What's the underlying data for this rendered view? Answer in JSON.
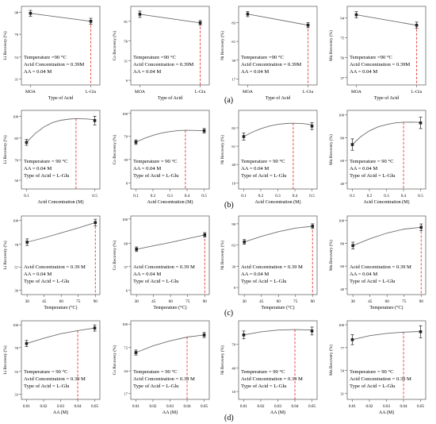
{
  "row_labels": [
    "(a)",
    "(b)",
    "(c)",
    "(d)"
  ],
  "colors": {
    "curve": "#6e6e6e",
    "marker": "#222222",
    "dashed": "#e8352c",
    "frame": "#555555"
  },
  "chart_data": [
    {
      "type": "line",
      "row": 0,
      "col": 0,
      "ylabel": "Li Recovery (%)",
      "xlabel": "Type of Acid",
      "x_categorical": true,
      "x_ticks": [
        "MOA",
        "L-Glu"
      ],
      "x": [
        0,
        1
      ],
      "xlim": [
        -0.15,
        1.15
      ],
      "y_ticks": [
        "31",
        "53",
        "76",
        "98"
      ],
      "ylim": [
        25,
        104
      ],
      "y_tick_vals": [
        31,
        53,
        76,
        98
      ],
      "points": [
        {
          "x": 0,
          "y": 97,
          "err": 3
        },
        {
          "x": 1,
          "y": 89,
          "err": 3
        }
      ],
      "curve": [
        [
          0,
          97
        ],
        [
          1,
          89
        ]
      ],
      "vline": 1,
      "annotation": [
        "Temperature =90 °C",
        "Acid Concentration = 0.39M",
        "AA = 0.04 M"
      ]
    },
    {
      "type": "line",
      "row": 0,
      "col": 1,
      "ylabel": "Co Recovery (%)",
      "xlabel": "Type of Acid",
      "x_categorical": true,
      "x_ticks": [
        "MOA",
        "L-Glu"
      ],
      "x": [
        0,
        1
      ],
      "xlim": [
        -0.15,
        1.15
      ],
      "y_ticks": [
        "6",
        "31",
        "56",
        "81"
      ],
      "ylim": [
        0,
        100
      ],
      "y_tick_vals": [
        6,
        31,
        56,
        81
      ],
      "points": [
        {
          "x": 0,
          "y": 90,
          "err": 4
        },
        {
          "x": 1,
          "y": 79,
          "err": 3
        }
      ],
      "curve": [
        [
          0,
          90
        ],
        [
          1,
          79
        ]
      ],
      "vline": 1,
      "annotation": [
        "Temperature =90 °C",
        "Acid Concentration = 0.39M",
        "AA = 0.04 M"
      ]
    },
    {
      "type": "line",
      "row": 0,
      "col": 2,
      "ylabel": "Ni Recovery (%)",
      "xlabel": "Type of Acid",
      "x_categorical": true,
      "x_ticks": [
        "MOA",
        "L-Glu"
      ],
      "x": [
        0,
        1
      ],
      "xlim": [
        -0.15,
        1.15
      ],
      "y_ticks": [
        "17",
        "39",
        "61",
        "83"
      ],
      "ylim": [
        10,
        102
      ],
      "y_tick_vals": [
        17,
        39,
        61,
        83
      ],
      "points": [
        {
          "x": 0,
          "y": 93,
          "err": 3
        },
        {
          "x": 1,
          "y": 80,
          "err": 3
        }
      ],
      "curve": [
        [
          0,
          93
        ],
        [
          1,
          80
        ]
      ],
      "vline": 1,
      "annotation": [
        "Temperature =90 °C",
        "Acid Concentration = 0.39M",
        "AA = 0.04 M"
      ]
    },
    {
      "type": "line",
      "row": 0,
      "col": 3,
      "ylabel": "Mn Recovery (%)",
      "xlabel": "Type of Acid",
      "x_categorical": true,
      "x_ticks": [
        "MOA",
        "L-Glu"
      ],
      "x": [
        0,
        1
      ],
      "xlim": [
        -0.15,
        1.15
      ],
      "y_ticks": [
        "37",
        "56",
        "75",
        "94"
      ],
      "ylim": [
        30,
        105
      ],
      "y_tick_vals": [
        37,
        56,
        75,
        94
      ],
      "points": [
        {
          "x": 0,
          "y": 97,
          "err": 3
        },
        {
          "x": 1,
          "y": 87,
          "err": 3
        }
      ],
      "curve": [
        [
          0,
          97
        ],
        [
          1,
          87
        ]
      ],
      "vline": 1,
      "annotation": [
        "Temperature =90 °C",
        "Acid Concentration = 0.39M",
        "AA = 0.04 M"
      ]
    },
    {
      "type": "line",
      "row": 1,
      "col": 0,
      "ylabel": "Li Recovery (%)",
      "xlabel": "Acid Concentration (M)",
      "x_ticks": [
        "0.1",
        "0.5"
      ],
      "x_tick_vals": [
        0.1,
        0.5
      ],
      "xlim": [
        0.07,
        0.53
      ],
      "y_ticks": [
        "56",
        "70",
        "85",
        "100"
      ],
      "ylim": [
        50,
        104
      ],
      "y_tick_vals": [
        56,
        70,
        85,
        100
      ],
      "points": [
        {
          "x": 0.1,
          "y": 82,
          "err": 2
        },
        {
          "x": 0.5,
          "y": 97,
          "err": 3
        }
      ],
      "curve": [
        [
          0.1,
          82
        ],
        [
          0.15,
          88
        ],
        [
          0.2,
          92.5
        ],
        [
          0.25,
          95.5
        ],
        [
          0.3,
          97.2
        ],
        [
          0.35,
          98
        ],
        [
          0.39,
          98.3
        ],
        [
          0.45,
          98.1
        ],
        [
          0.5,
          97.6
        ]
      ],
      "vline": 0.39,
      "annotation": [
        "Temperature = 90 °C",
        "AA = 0.04 M",
        "Type of Acid = L-Glu"
      ]
    },
    {
      "type": "line",
      "row": 1,
      "col": 1,
      "ylabel": "Co Recovery (%)",
      "xlabel": "Acid Concentration (M)",
      "x_ticks": [
        "0.1",
        "0.2",
        "0.3",
        "0.4",
        "0.5"
      ],
      "x_tick_vals": [
        0.1,
        0.2,
        0.3,
        0.4,
        0.5
      ],
      "xlim": [
        0.07,
        0.53
      ],
      "y_ticks": [
        "8",
        "39",
        "70",
        "100"
      ],
      "ylim": [
        0,
        104
      ],
      "y_tick_vals": [
        8,
        39,
        70,
        100
      ],
      "points": [
        {
          "x": 0.1,
          "y": 62,
          "err": 3
        },
        {
          "x": 0.5,
          "y": 77,
          "err": 3
        }
      ],
      "curve": [
        [
          0.1,
          62
        ],
        [
          0.15,
          67
        ],
        [
          0.2,
          71
        ],
        [
          0.25,
          74
        ],
        [
          0.3,
          76
        ],
        [
          0.35,
          77.3
        ],
        [
          0.39,
          77.6
        ],
        [
          0.45,
          77.4
        ],
        [
          0.5,
          77
        ]
      ],
      "vline": 0.39,
      "annotation": [
        "Temperature = 90 °C",
        "AA = 0.04 M",
        "Type of Acid = L-Glu"
      ]
    },
    {
      "type": "line",
      "row": 1,
      "col": 2,
      "ylabel": "Ni Recovery (%)",
      "xlabel": "Acid Concentration (M)",
      "x_ticks": [
        "0.1",
        "0.2",
        "0.3",
        "0.4",
        "0.5"
      ],
      "x_tick_vals": [
        0.1,
        0.2,
        0.3,
        0.4,
        0.5
      ],
      "xlim": [
        0.07,
        0.53
      ],
      "y_ticks": [
        "19",
        "40",
        "61",
        "82"
      ],
      "ylim": [
        12,
        102
      ],
      "y_tick_vals": [
        19,
        40,
        61,
        82
      ],
      "points": [
        {
          "x": 0.1,
          "y": 72,
          "err": 4
        },
        {
          "x": 0.5,
          "y": 84,
          "err": 4
        }
      ],
      "curve": [
        [
          0.1,
          72
        ],
        [
          0.15,
          77
        ],
        [
          0.2,
          81
        ],
        [
          0.25,
          84
        ],
        [
          0.3,
          86
        ],
        [
          0.35,
          87
        ],
        [
          0.39,
          87.3
        ],
        [
          0.45,
          86.8
        ],
        [
          0.5,
          85.5
        ]
      ],
      "vline": 0.39,
      "annotation": [
        "Temperature = 90 °C",
        "AA = 0.04 M",
        "Type of Acid = L-Glu"
      ]
    },
    {
      "type": "line",
      "row": 1,
      "col": 3,
      "ylabel": "Mn Recovery (%)",
      "xlabel": "Acid Concentration (M)",
      "x_ticks": [
        "0.1",
        "0.2",
        "0.3",
        "0.4",
        "0.5"
      ],
      "x_tick_vals": [
        0.1,
        0.2,
        0.3,
        0.4,
        0.5
      ],
      "xlim": [
        0.07,
        0.53
      ],
      "y_ticks": [
        "40",
        "60",
        "80",
        "100"
      ],
      "ylim": [
        35,
        104
      ],
      "y_tick_vals": [
        40,
        60,
        80,
        100
      ],
      "points": [
        {
          "x": 0.1,
          "y": 74,
          "err": 5
        },
        {
          "x": 0.5,
          "y": 93,
          "err": 5
        }
      ],
      "curve": [
        [
          0.1,
          74
        ],
        [
          0.15,
          81
        ],
        [
          0.2,
          86
        ],
        [
          0.25,
          89.5
        ],
        [
          0.3,
          91.5
        ],
        [
          0.35,
          93
        ],
        [
          0.4,
          93.6
        ],
        [
          0.45,
          93.7
        ],
        [
          0.5,
          93.4
        ]
      ],
      "vline": 0.4,
      "annotation": [
        "Temperature = 90 °C",
        "AA = 0.04 M",
        "Type of Acid = L-Glu"
      ]
    },
    {
      "type": "line",
      "row": 2,
      "col": 0,
      "ylabel": "Li Recovery (%)",
      "xlabel": "Temperature (°C)",
      "x_ticks": [
        "30",
        "45",
        "60",
        "75",
        "90"
      ],
      "x_tick_vals": [
        30,
        45,
        60,
        75,
        90
      ],
      "xlim": [
        25,
        94
      ],
      "y_ticks": [
        "36",
        "57",
        "78",
        "100"
      ],
      "ylim": [
        32,
        104
      ],
      "y_tick_vals": [
        36,
        57,
        78,
        100
      ],
      "points": [
        {
          "x": 30,
          "y": 80,
          "err": 3
        },
        {
          "x": 90,
          "y": 98,
          "err": 3
        }
      ],
      "curve": [
        [
          30,
          80
        ],
        [
          45,
          84
        ],
        [
          60,
          88.5
        ],
        [
          75,
          93
        ],
        [
          90,
          98
        ]
      ],
      "vline": 90,
      "annotation": [
        "Acid Concentration = 0.39 M",
        "AA = 0.04 M",
        "Type of Acid = L-Glu"
      ]
    },
    {
      "type": "line",
      "row": 2,
      "col": 1,
      "ylabel": "Co Recovery (%)",
      "xlabel": "Temperature (°C)",
      "x_ticks": [
        "30",
        "45",
        "60",
        "75",
        "90"
      ],
      "x_tick_vals": [
        30,
        45,
        60,
        75,
        90
      ],
      "xlim": [
        25,
        94
      ],
      "y_ticks": [
        "6",
        "37",
        "68",
        "100"
      ],
      "ylim": [
        0,
        104
      ],
      "y_tick_vals": [
        6,
        37,
        68,
        100
      ],
      "points": [
        {
          "x": 30,
          "y": 60,
          "err": 3
        },
        {
          "x": 90,
          "y": 79,
          "err": 3
        }
      ],
      "curve": [
        [
          30,
          60
        ],
        [
          45,
          64.5
        ],
        [
          60,
          69
        ],
        [
          75,
          74
        ],
        [
          90,
          79
        ]
      ],
      "vline": 90,
      "annotation": [
        "Acid Concentration = 0.39 M",
        "AA = 0.04 M",
        "Type of Acid = L-Glu"
      ]
    },
    {
      "type": "line",
      "row": 2,
      "col": 2,
      "ylabel": "Ni Recovery (%)",
      "xlabel": "Temperature (°C)",
      "x_ticks": [
        "30",
        "45",
        "60",
        "75",
        "90"
      ],
      "x_tick_vals": [
        30,
        45,
        60,
        75,
        90
      ],
      "xlim": [
        25,
        94
      ],
      "y_ticks": [
        "9",
        "36",
        "63",
        "90"
      ],
      "ylim": [
        0,
        100
      ],
      "y_tick_vals": [
        9,
        36,
        63,
        90
      ],
      "points": [
        {
          "x": 30,
          "y": 67,
          "err": 3
        },
        {
          "x": 90,
          "y": 87,
          "err": 3
        }
      ],
      "curve": [
        [
          30,
          67
        ],
        [
          45,
          74
        ],
        [
          60,
          80
        ],
        [
          75,
          84.5
        ],
        [
          90,
          87
        ]
      ],
      "vline": 90,
      "annotation": [
        "Acid Concentration = 0.39 M",
        "AA = 0.04 M",
        "Type of Acid = L-Glu"
      ]
    },
    {
      "type": "line",
      "row": 2,
      "col": 3,
      "ylabel": "Mn Recovery (%)",
      "xlabel": "Temperature (°C)",
      "x_ticks": [
        "30",
        "45",
        "60",
        "75",
        "90"
      ],
      "x_tick_vals": [
        30,
        45,
        60,
        75,
        90
      ],
      "xlim": [
        25,
        94
      ],
      "y_ticks": [
        "40",
        "60",
        "80",
        "100"
      ],
      "ylim": [
        35,
        104
      ],
      "y_tick_vals": [
        40,
        60,
        80,
        100
      ],
      "points": [
        {
          "x": 30,
          "y": 78,
          "err": 3
        },
        {
          "x": 90,
          "y": 94,
          "err": 3
        }
      ],
      "curve": [
        [
          30,
          78
        ],
        [
          45,
          84
        ],
        [
          60,
          89
        ],
        [
          75,
          92.5
        ],
        [
          90,
          94
        ]
      ],
      "vline": 90,
      "annotation": [
        "Acid Concentration = 0.39 M",
        "AA = 0.04 M",
        "Type of Acid = L-Glu"
      ]
    },
    {
      "type": "line",
      "row": 3,
      "col": 0,
      "ylabel": "Li Recovery (%)",
      "xlabel": "AA (M)",
      "x_ticks": [
        "0.01",
        "0.02",
        "0.03",
        "0.04",
        "0.05"
      ],
      "x_tick_vals": [
        0.01,
        0.02,
        0.03,
        0.04,
        0.05
      ],
      "xlim": [
        0.007,
        0.053
      ],
      "y_ticks": [
        "33",
        "55",
        "78",
        "100"
      ],
      "ylim": [
        28,
        104
      ],
      "y_tick_vals": [
        33,
        55,
        78,
        100
      ],
      "points": [
        {
          "x": 0.01,
          "y": 82,
          "err": 3
        },
        {
          "x": 0.05,
          "y": 97,
          "err": 3
        }
      ],
      "curve": [
        [
          0.01,
          82
        ],
        [
          0.02,
          87
        ],
        [
          0.03,
          91.5
        ],
        [
          0.04,
          94.5
        ],
        [
          0.05,
          97
        ]
      ],
      "vline": 0.04,
      "annotation": [
        "Temperature = 90 °C",
        "Acid Concentration = 0.39 M",
        "Type of Acid = L-Glu"
      ]
    },
    {
      "type": "line",
      "row": 3,
      "col": 1,
      "ylabel": "Co Recovery (%)",
      "xlabel": "AA (M)",
      "x_ticks": [
        "0.01",
        "0.02",
        "0.03",
        "0.04",
        "0.05"
      ],
      "x_tick_vals": [
        0.01,
        0.02,
        0.03,
        0.04,
        0.05
      ],
      "xlim": [
        0.007,
        0.053
      ],
      "y_ticks": [
        "17",
        "44",
        "72",
        "100"
      ],
      "ylim": [
        10,
        104
      ],
      "y_tick_vals": [
        17,
        44,
        72,
        100
      ],
      "points": [
        {
          "x": 0.01,
          "y": 66,
          "err": 3
        },
        {
          "x": 0.05,
          "y": 87,
          "err": 3
        }
      ],
      "curve": [
        [
          0.01,
          66
        ],
        [
          0.02,
          74
        ],
        [
          0.03,
          80
        ],
        [
          0.04,
          84.5
        ],
        [
          0.05,
          87
        ]
      ],
      "vline": 0.04,
      "annotation": [
        "Temperature = 90 °C",
        "Acid Concentration = 0.39 M",
        "Type of Acid = L-Glu"
      ]
    },
    {
      "type": "line",
      "row": 3,
      "col": 2,
      "ylabel": "Ni Recovery (%)",
      "xlabel": "AA (M)",
      "x_ticks": [
        "0.01",
        "0.02",
        "0.03",
        "0.04",
        "0.05"
      ],
      "x_tick_vals": [
        0.01,
        0.02,
        0.03,
        0.04,
        0.05
      ],
      "xlim": [
        0.007,
        0.053
      ],
      "y_ticks": [
        "10",
        "40",
        "70"
      ],
      "ylim": [
        0,
        100
      ],
      "y_tick_vals": [
        10,
        40,
        70
      ],
      "points": [
        {
          "x": 0.01,
          "y": 82,
          "err": 5
        },
        {
          "x": 0.05,
          "y": 87,
          "err": 5
        }
      ],
      "curve": [
        [
          0.01,
          82
        ],
        [
          0.02,
          86
        ],
        [
          0.03,
          88.2
        ],
        [
          0.04,
          88.8
        ],
        [
          0.05,
          88.3
        ]
      ],
      "vline": 0.04,
      "annotation": [
        "Temperature = 90 °C",
        "Acid Concentration = 0.39 M",
        "Type of Acid = L-Glu"
      ]
    },
    {
      "type": "line",
      "row": 3,
      "col": 3,
      "ylabel": "Mn Recovery (%)",
      "xlabel": "AA (M)",
      "x_ticks": [
        "0.01",
        "0.02",
        "0.03",
        "0.04",
        "0.05"
      ],
      "x_tick_vals": [
        0.01,
        0.02,
        0.03,
        0.04,
        0.05
      ],
      "xlim": [
        0.007,
        0.053
      ],
      "y_ticks": [
        "31",
        "54",
        "77",
        "100"
      ],
      "ylim": [
        25,
        104
      ],
      "y_tick_vals": [
        31,
        54,
        77,
        100
      ],
      "points": [
        {
          "x": 0.01,
          "y": 85,
          "err": 5
        },
        {
          "x": 0.05,
          "y": 93,
          "err": 6
        }
      ],
      "curve": [
        [
          0.01,
          85
        ],
        [
          0.02,
          89
        ],
        [
          0.03,
          91.3
        ],
        [
          0.04,
          92.6
        ],
        [
          0.05,
          93.2
        ]
      ],
      "vline": 0.04,
      "annotation": [
        "Temperature = 90 °C",
        "Acid Concentration = 0.39 M",
        "Type of Acid = L-Glu"
      ]
    }
  ]
}
